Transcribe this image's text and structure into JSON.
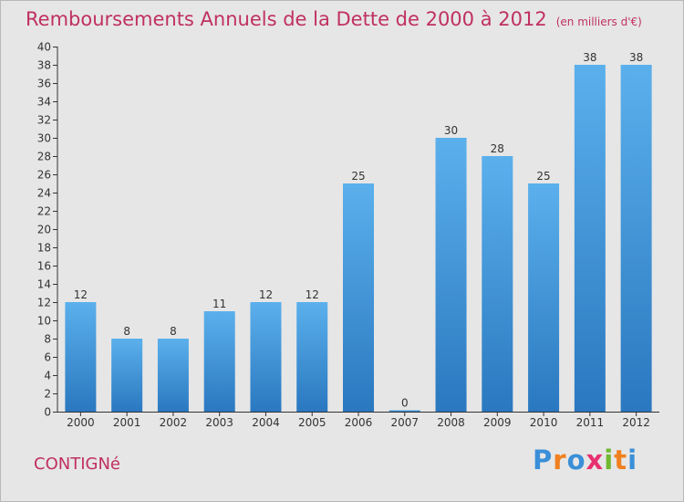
{
  "chart_data": {
    "type": "bar",
    "title": "Remboursements Annuels de la Dette de 2000 à 2012",
    "subtitle": "(en milliers d'€)",
    "categories": [
      "2000",
      "2001",
      "2002",
      "2003",
      "2004",
      "2005",
      "2006",
      "2007",
      "2008",
      "2009",
      "2010",
      "2011",
      "2012"
    ],
    "values": [
      12,
      8,
      8,
      11,
      12,
      12,
      25,
      0,
      30,
      28,
      25,
      38,
      38
    ],
    "ylim": [
      0,
      40
    ],
    "yticks": [
      0,
      2,
      4,
      6,
      8,
      10,
      12,
      14,
      16,
      18,
      20,
      22,
      24,
      26,
      28,
      30,
      32,
      34,
      36,
      38,
      40
    ],
    "grid": false,
    "bar_color": "#4a9de0"
  },
  "footer": {
    "town": "CONTIGNé",
    "logo": {
      "letters": [
        "P",
        "r",
        "o",
        "x",
        "i",
        "t",
        "i"
      ],
      "colors": [
        "#3a8fd8",
        "#f08020",
        "#3a8fd8",
        "#e83070",
        "#70b830",
        "#f08020",
        "#3a8fd8"
      ]
    }
  }
}
